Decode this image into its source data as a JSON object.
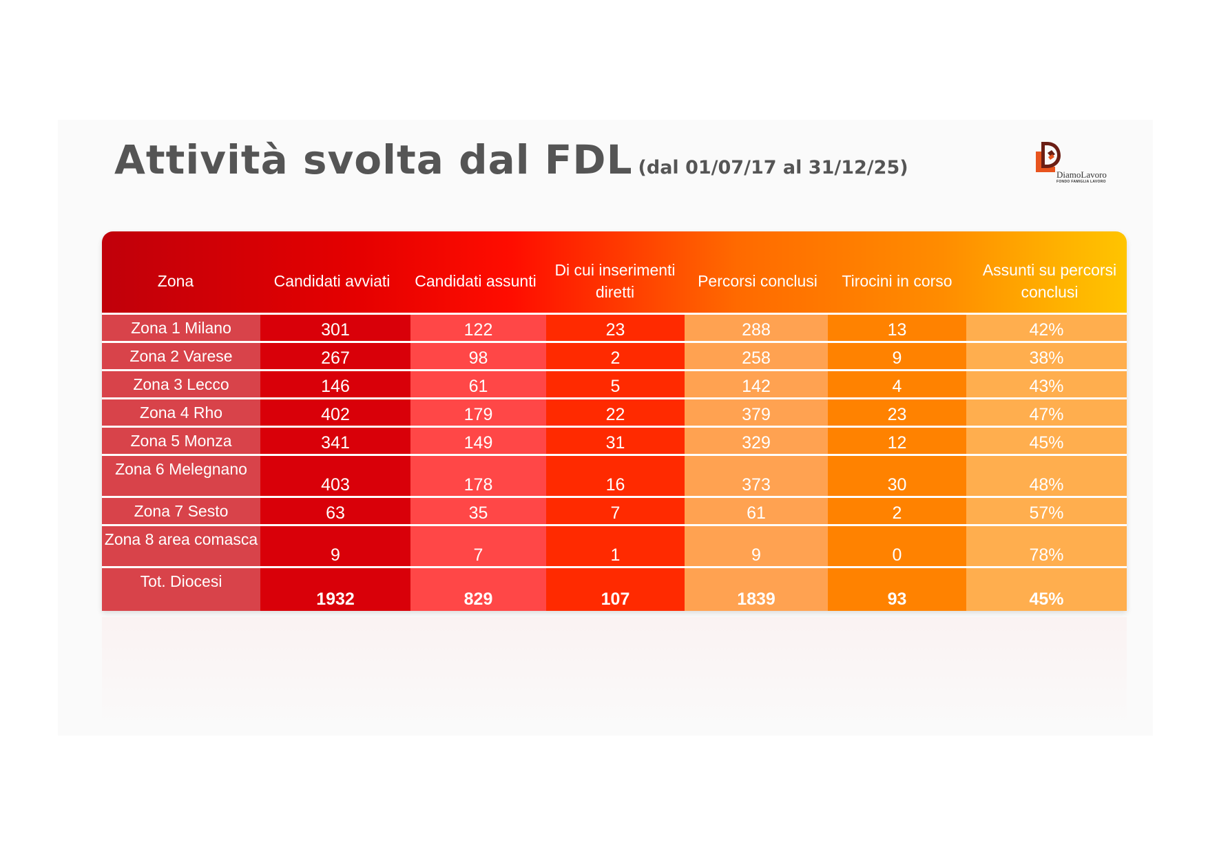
{
  "title": {
    "main": "Attività svolta dal FDL",
    "period": "(dal 01/07/17 al 31/12/25)"
  },
  "logo": {
    "brand": "DiamoLavoro",
    "tagline": "FONDO FAMIGLIA LAVORO"
  },
  "colors": {
    "col_zona": "#d8434a",
    "col_avviati": "#d90009",
    "col_assunti": "#ff4747",
    "col_inserimenti": "#ff2a00",
    "col_conclusi": "#ffa251",
    "col_tirocini": "#ff8200",
    "col_percent": "#ffae4e"
  },
  "table": {
    "headers": [
      "Zona",
      "Candidati avviati",
      "Candidati assunti",
      "Di cui inserimenti diretti",
      "Percorsi conclusi",
      "Tirocini in corso",
      "Assunti su percorsi conclusi"
    ],
    "rows": [
      {
        "zona": "Zona 1 Milano",
        "avviati": "301",
        "assunti": "122",
        "inserimenti": "23",
        "conclusi": "288",
        "tirocini": "13",
        "percentuale": "42%"
      },
      {
        "zona": "Zona 2 Varese",
        "avviati": "267",
        "assunti": "98",
        "inserimenti": "2",
        "conclusi": "258",
        "tirocini": "9",
        "percentuale": "38%"
      },
      {
        "zona": "Zona 3 Lecco",
        "avviati": "146",
        "assunti": "61",
        "inserimenti": "5",
        "conclusi": "142",
        "tirocini": "4",
        "percentuale": "43%"
      },
      {
        "zona": "Zona 4 Rho",
        "avviati": "402",
        "assunti": "179",
        "inserimenti": "22",
        "conclusi": "379",
        "tirocini": "23",
        "percentuale": "47%"
      },
      {
        "zona": "Zona 5 Monza",
        "avviati": "341",
        "assunti": "149",
        "inserimenti": "31",
        "conclusi": "329",
        "tirocini": "12",
        "percentuale": "45%"
      },
      {
        "zona": "Zona 6 Melegnano",
        "avviati": "403",
        "assunti": "178",
        "inserimenti": "16",
        "conclusi": "373",
        "tirocini": "30",
        "percentuale": "48%"
      },
      {
        "zona": "Zona 7 Sesto",
        "avviati": "63",
        "assunti": "35",
        "inserimenti": "7",
        "conclusi": "61",
        "tirocini": "2",
        "percentuale": "57%"
      },
      {
        "zona": "Zona 8 area comasca",
        "avviati": "9",
        "assunti": "7",
        "inserimenti": "1",
        "conclusi": "9",
        "tirocini": "0",
        "percentuale": "78%"
      }
    ],
    "total": {
      "zona": "Tot. Diocesi",
      "avviati": "1932",
      "assunti": "829",
      "inserimenti": "107",
      "conclusi": "1839",
      "tirocini": "93",
      "percentuale": "45%"
    }
  }
}
